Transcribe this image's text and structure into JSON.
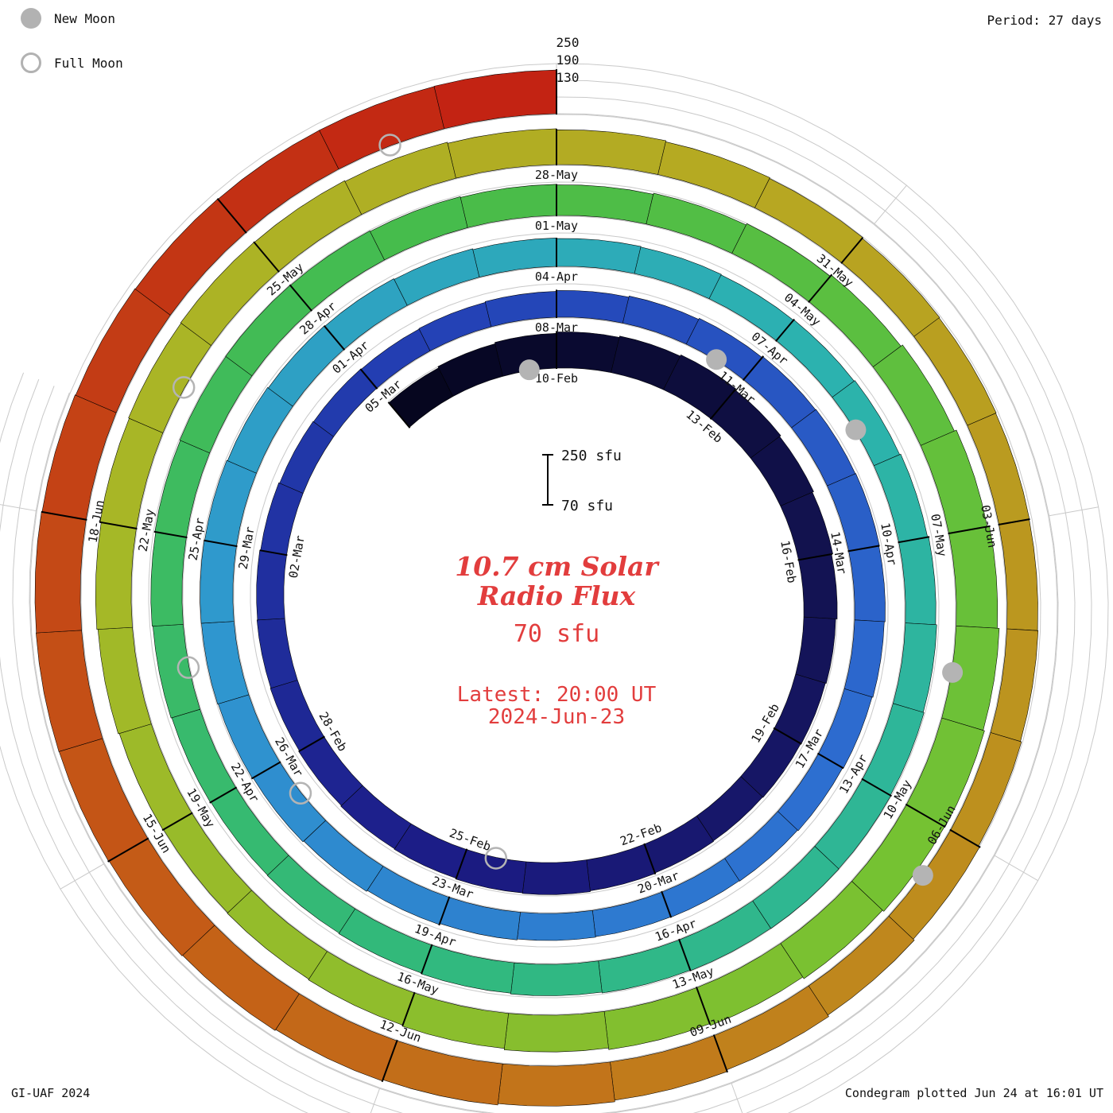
{
  "header": {
    "period_label": "Period: 27 days"
  },
  "legend": {
    "new_moon_label": "New Moon",
    "full_moon_label": "Full Moon"
  },
  "center": {
    "title_line1": "10.7 cm Solar",
    "title_line2": "Radio Flux",
    "latest_flux_label": "70 sfu",
    "latest_line1": "Latest: 20:00 UT",
    "latest_line2": "2024-Jun-23",
    "scale_top": "250 sfu",
    "scale_bottom": "70 sfu"
  },
  "footer": {
    "credit": "GI-UAF 2024",
    "plotted": "Condegram plotted Jun 24 at 16:01 UT"
  },
  "chart_data": {
    "type": "bar",
    "layout": "polar-spiral-condegram",
    "title": "10.7 cm Solar Radio Flux",
    "units": "sfu",
    "period_days": 27,
    "baseline_sfu": 70,
    "max_sfu": 250,
    "gridlines_sfu": [
      130,
      190,
      250
    ],
    "date_tick_step_days": 3,
    "start_date": "2024-02-07",
    "end_date": "2024-06-23",
    "first_label_date": "2024-02-10",
    "last_label_date": "2024-06-18",
    "latest_time_ut": "20:00",
    "latest_date": "2024-06-23",
    "new_moons": [
      "2024-02-09",
      "2024-03-10",
      "2024-04-08",
      "2024-05-08",
      "2024-06-06"
    ],
    "full_moons": [
      "2024-02-24",
      "2024-03-25",
      "2024-04-23",
      "2024-05-23",
      "2024-06-22"
    ],
    "color_stops": [
      [
        0.0,
        "#06061f"
      ],
      [
        0.06,
        "#12124f"
      ],
      [
        0.13,
        "#1c1c86"
      ],
      [
        0.2,
        "#2340b4"
      ],
      [
        0.28,
        "#2d6cd0"
      ],
      [
        0.36,
        "#2f97cf"
      ],
      [
        0.44,
        "#2cb3ae"
      ],
      [
        0.52,
        "#31b97e"
      ],
      [
        0.6,
        "#46bc4b"
      ],
      [
        0.68,
        "#76c232"
      ],
      [
        0.76,
        "#a6b827"
      ],
      [
        0.82,
        "#b6a922"
      ],
      [
        0.88,
        "#bf8a1d"
      ],
      [
        0.93,
        "#c45f17"
      ],
      [
        1.0,
        "#c32313"
      ]
    ],
    "daily_flux": [
      185,
      190,
      195,
      200,
      205,
      210,
      205,
      200,
      195,
      190,
      185,
      182,
      180,
      178,
      180,
      182,
      185,
      183,
      180,
      178,
      175,
      172,
      170,
      168,
      165,
      162,
      160,
      158,
      160,
      163,
      166,
      170,
      174,
      178,
      180,
      182,
      180,
      177,
      174,
      171,
      168,
      166,
      165,
      167,
      170,
      174,
      178,
      182,
      185,
      187,
      188,
      186,
      183,
      180,
      178,
      175,
      172,
      170,
      168,
      166,
      168,
      171,
      175,
      179,
      183,
      186,
      188,
      189,
      188,
      186,
      183,
      180,
      177,
      175,
      174,
      176,
      179,
      182,
      185,
      187,
      188,
      187,
      185,
      182,
      180,
      184,
      189,
      195,
      202,
      210,
      218,
      225,
      230,
      228,
      222,
      215,
      208,
      202,
      197,
      193,
      190,
      188,
      190,
      194,
      198,
      202,
      205,
      207,
      206,
      203,
      199,
      195,
      191,
      188,
      185,
      183,
      181,
      180,
      182,
      186,
      191,
      196,
      202,
      208,
      214,
      219,
      224,
      228,
      231,
      233,
      234,
      233,
      231,
      229,
      227,
      226,
      226,
      227
    ]
  }
}
